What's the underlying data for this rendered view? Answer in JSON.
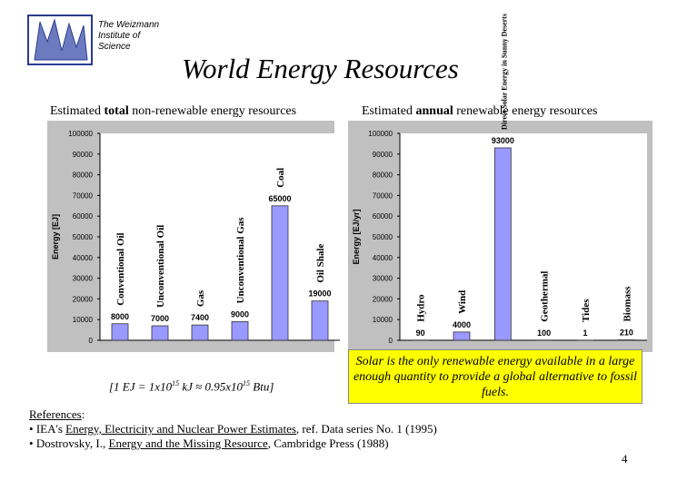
{
  "institute": [
    "The Weizmann",
    "Institute of",
    "Science"
  ],
  "title": "World Energy Resources",
  "chart_data": [
    {
      "type": "bar",
      "title": [
        "Estimated ",
        "total",
        " non-renewable energy resources"
      ],
      "y_label": "Energy [EJ]",
      "categories": [
        "Conventional Oil",
        "Unconventional Oil",
        "Gas",
        "Unconventional Gas",
        "Coal",
        "Oil Shale"
      ],
      "values": [
        8000,
        7000,
        7400,
        9000,
        65000,
        19000
      ],
      "color": "#9999ff",
      "ylim": [
        0,
        100000
      ],
      "yticks": [
        0,
        10000,
        20000,
        30000,
        40000,
        50000,
        60000,
        70000,
        80000,
        90000,
        100000
      ]
    },
    {
      "type": "bar",
      "title": [
        "Estimated ",
        "annual",
        " renewable energy resources"
      ],
      "y_label": "Energy [EJ/yr]",
      "categories": [
        "Hydro",
        "Wind",
        "Direct Solar Energy in Sunny Deserts",
        "Geothermal",
        "Tides",
        "Biomass"
      ],
      "values": [
        90,
        4000,
        93000,
        100,
        1,
        210
      ],
      "color": "#9999ff",
      "ylim": [
        0,
        100000
      ],
      "yticks": [
        0,
        10000,
        20000,
        30000,
        40000,
        50000,
        60000,
        70000,
        80000,
        90000,
        100000
      ]
    }
  ],
  "conversion": [
    "[1 EJ = 1x10",
    "15",
    " kJ ≈ 0.95x10",
    "15",
    " Btu]"
  ],
  "callout": "Solar is the only renewable energy available in a large enough quantity to provide a global alternative to fossil fuels.",
  "references": {
    "label": "References",
    "colon": ":",
    "items": [
      [
        "IEA's ",
        "Energy, Electricity and Nuclear Power Estimates",
        ", ref. Data series No. 1 (1995)"
      ],
      [
        "Dostrovsky, I., ",
        "Energy and the Missing Resource",
        ", Cambridge Press (1988)"
      ]
    ]
  },
  "page_number": "4"
}
